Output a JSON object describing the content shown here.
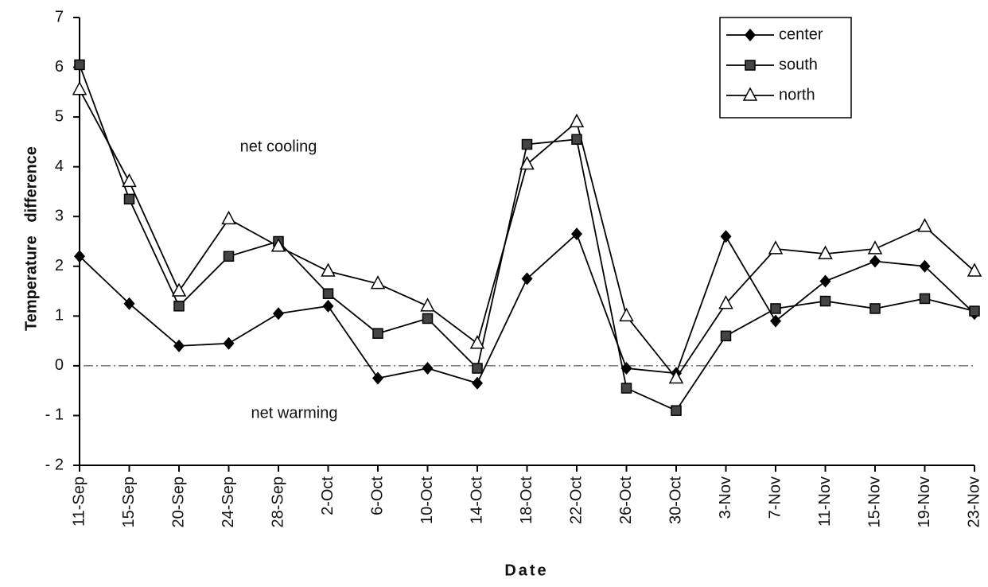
{
  "chart_data": {
    "type": "line",
    "x_label": "Date",
    "y_label": "Temperature   difference",
    "annotations": [
      "net cooling",
      "net warming"
    ],
    "categories": [
      "11-Sep",
      "15-Sep",
      "20-Sep",
      "24-Sep",
      "28-Sep",
      "2-Oct",
      "6-Oct",
      "10-Oct",
      "14-Oct",
      "18-Oct",
      "22-Oct",
      "26-Oct",
      "30-Oct",
      "3-Nov",
      "7-Nov",
      "11-Nov",
      "15-Nov",
      "19-Nov",
      "23-Nov"
    ],
    "series": [
      {
        "name": "center",
        "color": "#000000",
        "marker": "diamond",
        "values": [
          2.2,
          1.25,
          0.4,
          0.45,
          1.05,
          1.2,
          -0.25,
          -0.05,
          -0.35,
          1.75,
          2.65,
          -0.05,
          -0.15,
          2.6,
          0.9,
          1.7,
          2.1,
          2.0,
          1.05
        ]
      },
      {
        "name": "south",
        "color": "#000000",
        "marker": "square",
        "values": [
          6.05,
          3.35,
          1.2,
          2.2,
          2.5,
          1.45,
          0.65,
          0.95,
          -0.05,
          4.45,
          4.55,
          -0.45,
          -0.9,
          0.6,
          1.15,
          1.3,
          1.15,
          1.35,
          1.1
        ]
      },
      {
        "name": "north",
        "color": "#000000",
        "marker": "triangle",
        "values": [
          5.55,
          3.7,
          1.5,
          2.95,
          2.4,
          1.9,
          1.65,
          1.2,
          0.45,
          4.05,
          4.9,
          1.0,
          -0.25,
          1.25,
          2.35,
          2.25,
          2.35,
          2.8,
          1.9
        ]
      }
    ],
    "ylim": [
      -2,
      7
    ],
    "yticks": [
      {
        "value": -2,
        "label": "- 2"
      },
      {
        "value": -1,
        "label": "- 1"
      },
      0,
      1,
      2,
      3,
      4,
      5,
      6,
      7
    ],
    "reference_line": 0,
    "grid": false,
    "legend": "upper right"
  }
}
